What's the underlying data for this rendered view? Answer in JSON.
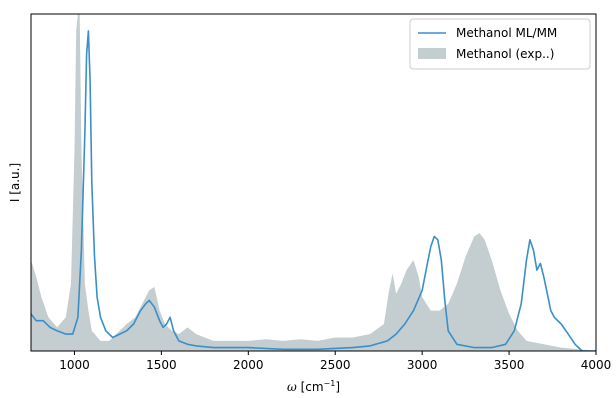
{
  "chart_data": {
    "type": "line",
    "xlabel_math": "ω",
    "xlabel_unit": " [cm",
    "xlabel_sup": "−1",
    "xlabel_close": "]",
    "ylabel": "I [a.u.]",
    "xlim": [
      750,
      4000
    ],
    "ylim": [
      0,
      1.0
    ],
    "xticks": [
      1000,
      1500,
      2000,
      2500,
      3000,
      3500,
      4000
    ],
    "yticks_visible": false,
    "grid": false,
    "legend_position": "top-right",
    "colors": {
      "line": "#3a8fc8",
      "fill": "#c4cdd0"
    },
    "series": [
      {
        "name": "Methanol ML/MM",
        "style": "line",
        "points": [
          [
            750,
            0.11
          ],
          [
            780,
            0.09
          ],
          [
            820,
            0.09
          ],
          [
            860,
            0.07
          ],
          [
            900,
            0.06
          ],
          [
            950,
            0.05
          ],
          [
            990,
            0.05
          ],
          [
            1020,
            0.1
          ],
          [
            1040,
            0.3
          ],
          [
            1060,
            0.65
          ],
          [
            1070,
            0.88
          ],
          [
            1080,
            0.95
          ],
          [
            1090,
            0.8
          ],
          [
            1100,
            0.5
          ],
          [
            1115,
            0.28
          ],
          [
            1130,
            0.16
          ],
          [
            1150,
            0.1
          ],
          [
            1180,
            0.06
          ],
          [
            1220,
            0.04
          ],
          [
            1260,
            0.05
          ],
          [
            1300,
            0.06
          ],
          [
            1340,
            0.08
          ],
          [
            1380,
            0.12
          ],
          [
            1410,
            0.14
          ],
          [
            1430,
            0.15
          ],
          [
            1460,
            0.13
          ],
          [
            1490,
            0.09
          ],
          [
            1510,
            0.07
          ],
          [
            1530,
            0.08
          ],
          [
            1550,
            0.1
          ],
          [
            1570,
            0.06
          ],
          [
            1600,
            0.03
          ],
          [
            1650,
            0.02
          ],
          [
            1700,
            0.015
          ],
          [
            1800,
            0.01
          ],
          [
            2000,
            0.01
          ],
          [
            2200,
            0.005
          ],
          [
            2400,
            0.005
          ],
          [
            2600,
            0.01
          ],
          [
            2700,
            0.015
          ],
          [
            2800,
            0.03
          ],
          [
            2850,
            0.05
          ],
          [
            2900,
            0.08
          ],
          [
            2950,
            0.12
          ],
          [
            3000,
            0.18
          ],
          [
            3030,
            0.26
          ],
          [
            3050,
            0.31
          ],
          [
            3070,
            0.34
          ],
          [
            3090,
            0.33
          ],
          [
            3110,
            0.27
          ],
          [
            3130,
            0.15
          ],
          [
            3150,
            0.06
          ],
          [
            3200,
            0.02
          ],
          [
            3300,
            0.01
          ],
          [
            3400,
            0.01
          ],
          [
            3480,
            0.02
          ],
          [
            3530,
            0.06
          ],
          [
            3570,
            0.14
          ],
          [
            3600,
            0.27
          ],
          [
            3620,
            0.33
          ],
          [
            3640,
            0.3
          ],
          [
            3660,
            0.24
          ],
          [
            3680,
            0.26
          ],
          [
            3700,
            0.22
          ],
          [
            3720,
            0.17
          ],
          [
            3740,
            0.12
          ],
          [
            3760,
            0.1
          ],
          [
            3800,
            0.08
          ],
          [
            3840,
            0.05
          ],
          [
            3880,
            0.02
          ],
          [
            3920,
            0.0
          ],
          [
            4000,
            0.0
          ]
        ]
      },
      {
        "name": "Methanol (exp..)",
        "style": "area",
        "points": [
          [
            750,
            0.27
          ],
          [
            780,
            0.22
          ],
          [
            810,
            0.16
          ],
          [
            850,
            0.1
          ],
          [
            900,
            0.07
          ],
          [
            950,
            0.1
          ],
          [
            980,
            0.2
          ],
          [
            1000,
            0.6
          ],
          [
            1010,
            0.95
          ],
          [
            1020,
            1.0
          ],
          [
            1030,
            1.0
          ],
          [
            1040,
            0.6
          ],
          [
            1060,
            0.2
          ],
          [
            1080,
            0.12
          ],
          [
            1100,
            0.06
          ],
          [
            1150,
            0.03
          ],
          [
            1200,
            0.03
          ],
          [
            1260,
            0.06
          ],
          [
            1300,
            0.08
          ],
          [
            1350,
            0.1
          ],
          [
            1400,
            0.15
          ],
          [
            1430,
            0.18
          ],
          [
            1460,
            0.19
          ],
          [
            1490,
            0.12
          ],
          [
            1520,
            0.08
          ],
          [
            1560,
            0.06
          ],
          [
            1600,
            0.05
          ],
          [
            1650,
            0.07
          ],
          [
            1700,
            0.05
          ],
          [
            1800,
            0.03
          ],
          [
            1900,
            0.03
          ],
          [
            2000,
            0.03
          ],
          [
            2100,
            0.035
          ],
          [
            2200,
            0.03
          ],
          [
            2300,
            0.035
          ],
          [
            2400,
            0.03
          ],
          [
            2500,
            0.04
          ],
          [
            2600,
            0.04
          ],
          [
            2700,
            0.05
          ],
          [
            2780,
            0.08
          ],
          [
            2810,
            0.18
          ],
          [
            2830,
            0.23
          ],
          [
            2850,
            0.17
          ],
          [
            2880,
            0.2
          ],
          [
            2910,
            0.24
          ],
          [
            2950,
            0.27
          ],
          [
            2980,
            0.22
          ],
          [
            3000,
            0.16
          ],
          [
            3050,
            0.12
          ],
          [
            3100,
            0.12
          ],
          [
            3150,
            0.14
          ],
          [
            3200,
            0.2
          ],
          [
            3250,
            0.28
          ],
          [
            3300,
            0.34
          ],
          [
            3330,
            0.35
          ],
          [
            3360,
            0.33
          ],
          [
            3400,
            0.27
          ],
          [
            3450,
            0.18
          ],
          [
            3500,
            0.11
          ],
          [
            3550,
            0.06
          ],
          [
            3600,
            0.03
          ],
          [
            3700,
            0.02
          ],
          [
            3800,
            0.01
          ],
          [
            4000,
            0.0
          ]
        ]
      }
    ]
  }
}
